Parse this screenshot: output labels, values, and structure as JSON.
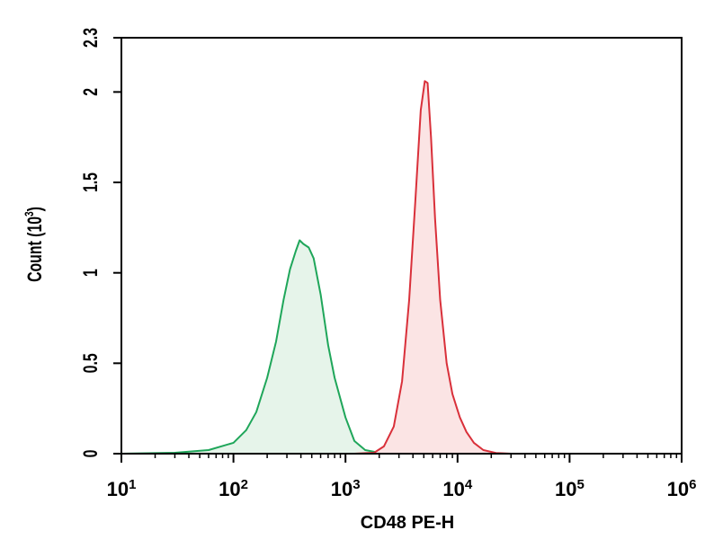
{
  "chart_data": {
    "type": "area",
    "xlabel": "CD48 PE-H",
    "ylabel_main": "Count (10",
    "ylabel_exp": "3",
    "ylabel_close": ")",
    "x_scale": "log",
    "xlim": [
      10,
      1000000
    ],
    "ylim": [
      0,
      2.3
    ],
    "x_ticks": [
      {
        "value": 10,
        "base": "10",
        "exp": "1"
      },
      {
        "value": 100,
        "base": "10",
        "exp": "2"
      },
      {
        "value": 1000,
        "base": "10",
        "exp": "3"
      },
      {
        "value": 10000,
        "base": "10",
        "exp": "4"
      },
      {
        "value": 100000,
        "base": "10",
        "exp": "5"
      },
      {
        "value": 1000000,
        "base": "10",
        "exp": "6"
      }
    ],
    "y_ticks": [
      {
        "value": 0,
        "label": "0"
      },
      {
        "value": 0.5,
        "label": "0.5"
      },
      {
        "value": 1,
        "label": "1"
      },
      {
        "value": 1.5,
        "label": "1.5"
      },
      {
        "value": 2,
        "label": "2"
      },
      {
        "value": 2.3,
        "label": "2.3"
      }
    ],
    "grid": false,
    "series": [
      {
        "color": "#1fa65a",
        "fill": "#e6f4ea",
        "x": [
          10,
          30,
          60,
          100,
          130,
          160,
          200,
          240,
          280,
          320,
          360,
          390,
          420,
          470,
          520,
          600,
          700,
          800,
          1000,
          1200,
          1500,
          2000,
          3000,
          5000
        ],
        "y": [
          0,
          0.005,
          0.02,
          0.06,
          0.13,
          0.23,
          0.42,
          0.62,
          0.85,
          1.02,
          1.12,
          1.18,
          1.16,
          1.14,
          1.08,
          0.88,
          0.6,
          0.42,
          0.2,
          0.07,
          0.02,
          0.005,
          0.002,
          0
        ]
      },
      {
        "color": "#d9303a",
        "fill": "#fbe4e4",
        "x": [
          1200,
          1800,
          2200,
          2700,
          3200,
          3700,
          4200,
          4700,
          5100,
          5400,
          5800,
          6300,
          7000,
          8000,
          9000,
          10500,
          12000,
          14000,
          17000,
          22000,
          30000
        ],
        "y": [
          0,
          0.005,
          0.04,
          0.15,
          0.4,
          0.85,
          1.4,
          1.9,
          2.06,
          2.05,
          1.75,
          1.3,
          0.85,
          0.5,
          0.33,
          0.2,
          0.12,
          0.06,
          0.02,
          0.004,
          0
        ]
      }
    ]
  }
}
